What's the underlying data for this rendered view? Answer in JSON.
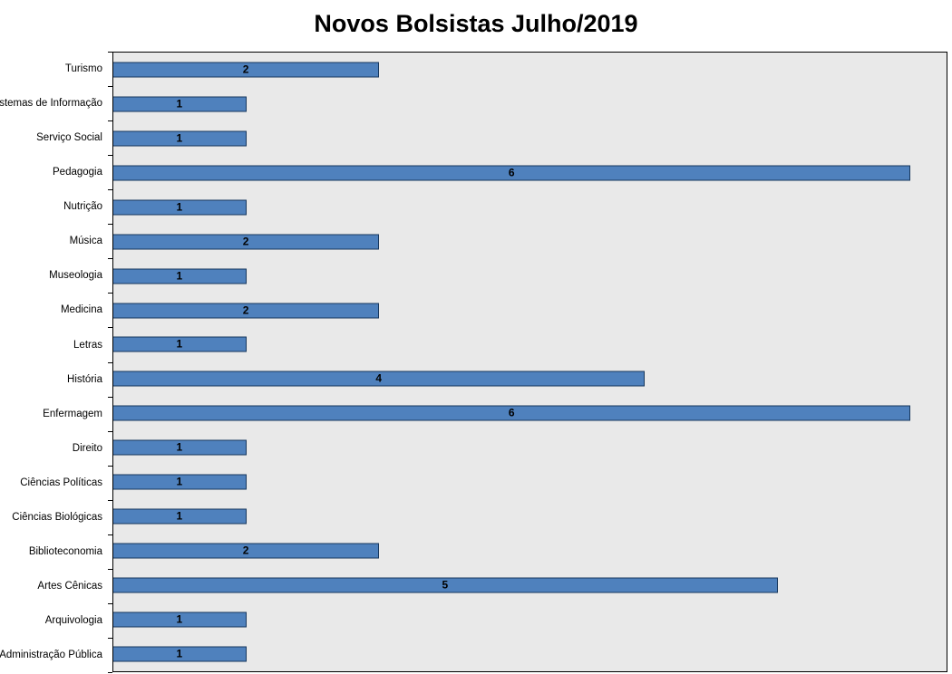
{
  "chart_data": {
    "type": "bar",
    "orientation": "horizontal",
    "title": "Novos Bolsistas Julho/2019",
    "categories": [
      "Turismo",
      "Sistemas de Informação",
      "Serviço Social",
      "Pedagogia",
      "Nutrição",
      "Música",
      "Museologia",
      "Medicina",
      "Letras",
      "História",
      "Enfermagem",
      "Direito",
      "Ciências Políticas",
      "Ciências Biológicas",
      "Biblioteconomia",
      "Artes Cênicas",
      "Arquivologia",
      "Administração Pública"
    ],
    "values": [
      2,
      1,
      1,
      6,
      1,
      2,
      1,
      2,
      1,
      4,
      6,
      1,
      1,
      1,
      2,
      5,
      1,
      1
    ],
    "xlim": [
      0,
      6.27
    ],
    "data_label_position": "inside-center",
    "grid": false,
    "legend": "none",
    "colors": {
      "bar_fill": "#4f81bd",
      "bar_border": "#17375d",
      "plot_background": "#e9e9e9",
      "plot_border": "#000000",
      "title_text": "#000000",
      "label_text": "#000000"
    }
  }
}
